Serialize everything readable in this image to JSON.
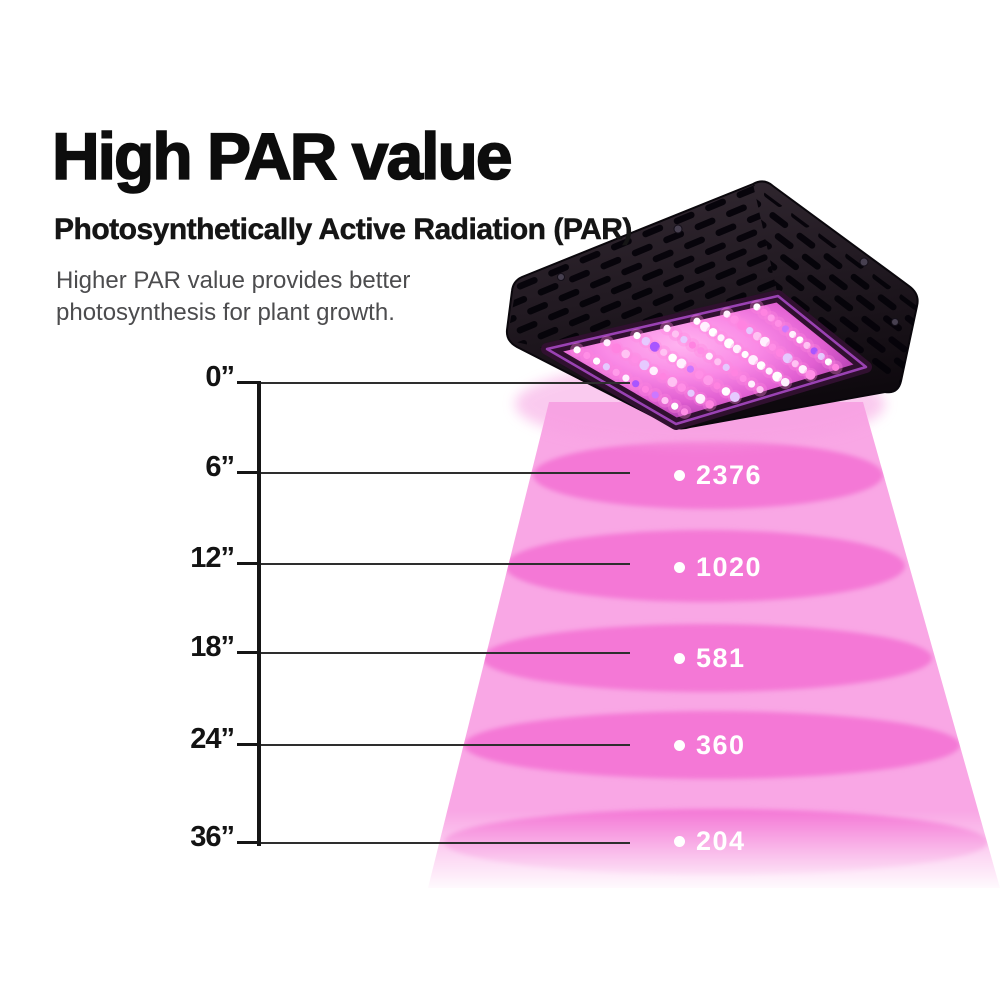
{
  "page": {
    "title": "High PAR value",
    "subtitle": "Photosynthetically Active Radiation (PAR)",
    "description_line1": "Higher PAR value provides better",
    "description_line2": "photosynthesis for plant growth."
  },
  "measurements": [
    {
      "distance": "0”",
      "par": ""
    },
    {
      "distance": "6”",
      "par": "2376"
    },
    {
      "distance": "12”",
      "par": "1020"
    },
    {
      "distance": "18”",
      "par": "581"
    },
    {
      "distance": "24”",
      "par": "360"
    },
    {
      "distance": "36”",
      "par": "204"
    }
  ],
  "chart_data": {
    "type": "table",
    "title": "High PAR value",
    "categories": [
      "0\"",
      "6\"",
      "12\"",
      "18\"",
      "24\"",
      "36\""
    ],
    "series": [
      {
        "name": "PAR value by distance",
        "values": [
          null,
          2376,
          1020,
          581,
          360,
          204
        ]
      }
    ]
  },
  "colors": {
    "cone_pink": "#F9A7E5",
    "ellipse_pink": "#F478D6",
    "title_black": "#0D0D0D",
    "body_gray": "#4C4C4E",
    "value_white": "#FFFFFF"
  },
  "icons": {
    "bullet": "white-dot"
  }
}
